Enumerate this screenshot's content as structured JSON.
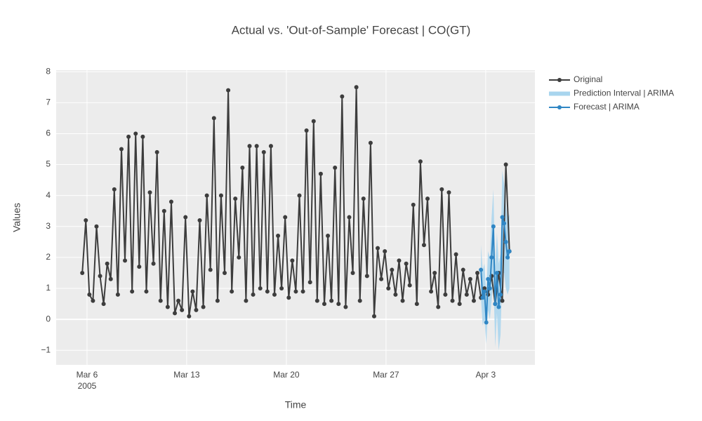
{
  "chart_data": {
    "type": "line",
    "title": "Actual vs. 'Out-of-Sample' Forecast | CO(GT)",
    "x_label": "Time",
    "y_label": "Values",
    "xlim": [
      "2005-03-03 20:00",
      "2005-04-06 11:00"
    ],
    "xticks": [
      {
        "value": "2005-03-06 00:00",
        "label": "Mar 6"
      },
      {
        "value": "2005-03-13 00:00",
        "label": "Mar 13"
      },
      {
        "value": "2005-03-20 00:00",
        "label": "Mar 20"
      },
      {
        "value": "2005-03-27 00:00",
        "label": "Mar 27"
      },
      {
        "value": "2005-04-03 00:00",
        "label": "Apr 3"
      }
    ],
    "xtick_year": "2005",
    "ylim": [
      -1.47,
      8.05
    ],
    "yticks": [
      {
        "value": -1,
        "label": "−1"
      },
      0,
      1,
      2,
      3,
      4,
      5,
      6,
      7,
      8
    ],
    "grid": true,
    "legend": "right",
    "series": [
      {
        "name": "Original",
        "color": "#3d3d3d",
        "x": [
          "2005-03-05 16:00",
          "2005-03-05 22:00",
          "2005-03-06 04:00",
          "2005-03-06 10:00",
          "2005-03-06 16:00",
          "2005-03-06 22:00",
          "2005-03-07 04:00",
          "2005-03-07 10:00",
          "2005-03-07 16:00",
          "2005-03-07 22:00",
          "2005-03-08 04:00",
          "2005-03-08 10:00",
          "2005-03-08 16:00",
          "2005-03-08 22:00",
          "2005-03-09 04:00",
          "2005-03-09 10:00",
          "2005-03-09 16:00",
          "2005-03-09 22:00",
          "2005-03-10 04:00",
          "2005-03-10 10:00",
          "2005-03-10 16:00",
          "2005-03-10 22:00",
          "2005-03-11 04:00",
          "2005-03-11 10:00",
          "2005-03-11 16:00",
          "2005-03-11 22:00",
          "2005-03-12 04:00",
          "2005-03-12 10:00",
          "2005-03-12 16:00",
          "2005-03-12 22:00",
          "2005-03-13 04:00",
          "2005-03-13 10:00",
          "2005-03-13 16:00",
          "2005-03-13 22:00",
          "2005-03-14 04:00",
          "2005-03-14 10:00",
          "2005-03-14 16:00",
          "2005-03-14 22:00",
          "2005-03-15 04:00",
          "2005-03-15 10:00",
          "2005-03-15 16:00",
          "2005-03-15 22:00",
          "2005-03-16 04:00",
          "2005-03-16 10:00",
          "2005-03-16 16:00",
          "2005-03-16 22:00",
          "2005-03-17 04:00",
          "2005-03-17 10:00",
          "2005-03-17 16:00",
          "2005-03-17 22:00",
          "2005-03-18 04:00",
          "2005-03-18 10:00",
          "2005-03-18 16:00",
          "2005-03-18 22:00",
          "2005-03-19 04:00",
          "2005-03-19 10:00",
          "2005-03-19 16:00",
          "2005-03-19 22:00",
          "2005-03-20 04:00",
          "2005-03-20 10:00",
          "2005-03-20 16:00",
          "2005-03-20 22:00",
          "2005-03-21 04:00",
          "2005-03-21 10:00",
          "2005-03-21 16:00",
          "2005-03-21 22:00",
          "2005-03-22 04:00",
          "2005-03-22 10:00",
          "2005-03-22 16:00",
          "2005-03-22 22:00",
          "2005-03-23 04:00",
          "2005-03-23 10:00",
          "2005-03-23 16:00",
          "2005-03-23 22:00",
          "2005-03-24 04:00",
          "2005-03-24 10:00",
          "2005-03-24 16:00",
          "2005-03-24 22:00",
          "2005-03-25 04:00",
          "2005-03-25 10:00",
          "2005-03-25 16:00",
          "2005-03-25 22:00",
          "2005-03-26 04:00",
          "2005-03-26 10:00",
          "2005-03-26 16:00",
          "2005-03-26 22:00",
          "2005-03-27 04:00",
          "2005-03-27 10:00",
          "2005-03-27 16:00",
          "2005-03-27 22:00",
          "2005-03-28 04:00",
          "2005-03-28 10:00",
          "2005-03-28 16:00",
          "2005-03-28 22:00",
          "2005-03-29 04:00",
          "2005-03-29 10:00",
          "2005-03-29 16:00",
          "2005-03-29 22:00",
          "2005-03-30 04:00",
          "2005-03-30 10:00",
          "2005-03-30 16:00",
          "2005-03-30 22:00",
          "2005-03-31 04:00",
          "2005-03-31 10:00",
          "2005-03-31 16:00",
          "2005-03-31 22:00",
          "2005-04-01 04:00",
          "2005-04-01 10:00",
          "2005-04-01 16:00",
          "2005-04-01 22:00",
          "2005-04-02 04:00",
          "2005-04-02 10:00",
          "2005-04-02 16:00",
          "2005-04-02 22:00",
          "2005-04-03 04:00",
          "2005-04-03 10:00",
          "2005-04-03 16:00",
          "2005-04-03 22:00",
          "2005-04-04 04:00",
          "2005-04-04 10:00",
          "2005-04-04 16:00"
        ],
        "values": [
          1.5,
          3.2,
          0.8,
          0.6,
          3.0,
          1.4,
          0.5,
          1.8,
          1.3,
          4.2,
          0.8,
          5.5,
          1.9,
          5.9,
          0.9,
          6.0,
          1.7,
          5.9,
          0.9,
          4.1,
          1.8,
          5.4,
          0.6,
          3.5,
          0.4,
          3.8,
          0.2,
          0.6,
          0.3,
          3.3,
          0.1,
          0.9,
          0.3,
          3.2,
          0.4,
          4.0,
          1.6,
          6.5,
          0.6,
          4.0,
          1.5,
          7.4,
          0.9,
          3.9,
          2.0,
          4.9,
          0.6,
          5.6,
          0.8,
          5.6,
          1.0,
          5.4,
          0.9,
          5.6,
          0.8,
          2.7,
          1.0,
          3.3,
          0.7,
          1.9,
          0.9,
          4.0,
          0.9,
          6.1,
          1.2,
          6.4,
          0.6,
          4.7,
          0.5,
          2.7,
          0.6,
          4.9,
          0.5,
          7.2,
          0.4,
          3.3,
          1.5,
          7.5,
          0.6,
          3.9,
          1.4,
          5.7,
          0.1,
          2.3,
          1.3,
          2.2,
          1.0,
          1.6,
          0.8,
          1.9,
          0.6,
          1.8,
          1.1,
          3.7,
          0.5,
          5.1,
          2.4,
          3.9,
          0.9,
          1.5,
          0.4,
          4.2,
          0.8,
          4.1,
          0.6,
          2.1,
          0.5,
          1.6,
          0.8,
          1.3,
          0.6,
          1.5,
          0.7,
          1.0,
          0.8,
          1.4,
          0.5,
          1.5,
          0.6,
          5.0,
          2.2
        ]
      },
      {
        "name": "Prediction Interval | ARIMA",
        "color": "#a8d5ee",
        "x": [
          "2005-04-02 16:00",
          "2005-04-02 19:00",
          "2005-04-02 22:00",
          "2005-04-03 01:00",
          "2005-04-03 04:00",
          "2005-04-03 07:00",
          "2005-04-03 10:00",
          "2005-04-03 13:00",
          "2005-04-03 16:00",
          "2005-04-03 19:00",
          "2005-04-03 22:00",
          "2005-04-04 01:00",
          "2005-04-04 04:00",
          "2005-04-04 07:00",
          "2005-04-04 10:00",
          "2005-04-04 13:00",
          "2005-04-04 16:00"
        ],
        "lower": [
          0.7,
          -0.2,
          0.0,
          -0.8,
          0.3,
          0.0,
          0.6,
          1.4,
          -0.9,
          0.2,
          -1.0,
          -0.5,
          1.5,
          1.5,
          1.0,
          0.8,
          1.0
        ],
        "upper": [
          2.4,
          1.6,
          1.8,
          0.8,
          2.2,
          2.0,
          3.3,
          4.2,
          1.7,
          2.8,
          1.8,
          2.1,
          4.8,
          4.4,
          3.7,
          3.2,
          3.4
        ]
      },
      {
        "name": "Forecast | ARIMA",
        "color": "#2f86c4",
        "x": [
          "2005-04-02 16:00",
          "2005-04-02 19:00",
          "2005-04-02 22:00",
          "2005-04-03 01:00",
          "2005-04-03 04:00",
          "2005-04-03 07:00",
          "2005-04-03 10:00",
          "2005-04-03 13:00",
          "2005-04-03 16:00",
          "2005-04-03 19:00",
          "2005-04-03 22:00",
          "2005-04-04 01:00",
          "2005-04-04 04:00",
          "2005-04-04 07:00",
          "2005-04-04 10:00",
          "2005-04-04 13:00",
          "2005-04-04 16:00"
        ],
        "values": [
          1.6,
          0.7,
          0.9,
          -0.1,
          1.3,
          1.0,
          2.0,
          3.0,
          0.5,
          1.5,
          0.4,
          0.8,
          3.3,
          3.1,
          2.5,
          2.0,
          2.2
        ]
      }
    ]
  }
}
